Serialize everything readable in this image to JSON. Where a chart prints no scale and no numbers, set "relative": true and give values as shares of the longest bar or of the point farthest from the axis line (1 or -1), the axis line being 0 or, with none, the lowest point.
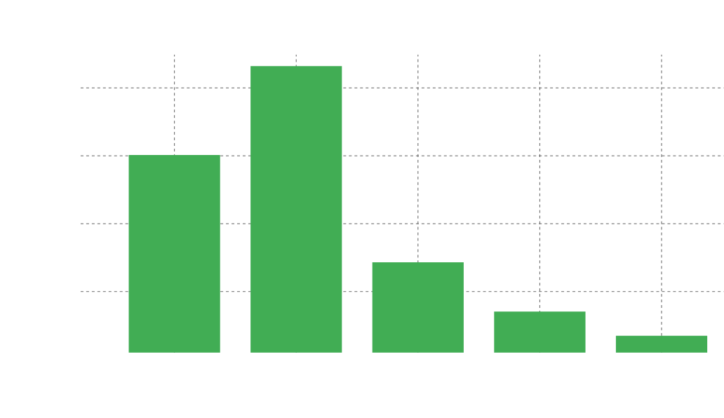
{
  "chart_data": {
    "type": "bar",
    "relative": true,
    "categories": [
      null,
      null,
      null,
      null,
      null
    ],
    "values": [
      0.69,
      1,
      0.315,
      0.143,
      0.059
    ],
    "color": "#41ad54",
    "grid": true
  }
}
